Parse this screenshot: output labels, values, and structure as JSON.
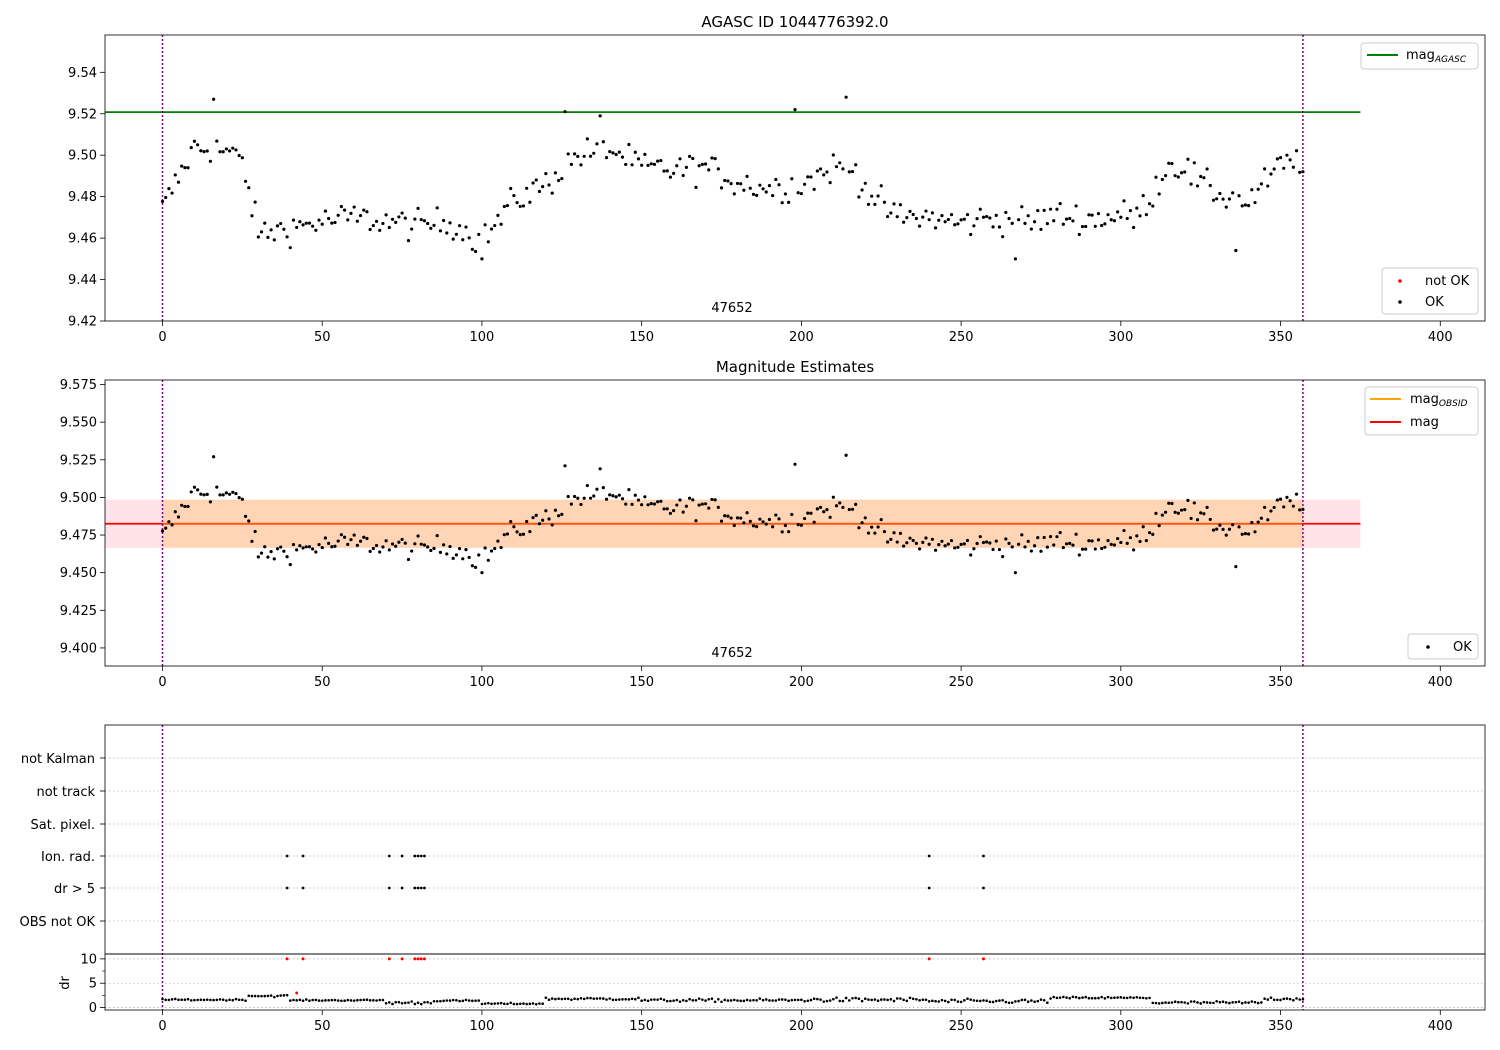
{
  "chart_data": [
    {
      "type": "scatter",
      "title": "AGASC ID 1044776392.0",
      "xlim": [
        -18,
        414
      ],
      "ylim": [
        9.42,
        9.558
      ],
      "xticks": [
        "0",
        "50",
        "100",
        "150",
        "200",
        "250",
        "300",
        "350",
        "400"
      ],
      "yticks": [
        "9.42",
        "9.44",
        "9.46",
        "9.48",
        "9.50",
        "9.52",
        "9.54"
      ],
      "annotation": "47652",
      "reference_line": {
        "name": "mag",
        "subscript": "AGASC",
        "value": 9.5208,
        "x_range": [
          -18,
          375
        ],
        "color": "#008000"
      },
      "vlines": [
        0,
        357
      ],
      "legend_top": [
        {
          "name": "mag",
          "subscript": "AGASC",
          "color": "#008000"
        }
      ],
      "legend_bottom": [
        {
          "name": "not OK",
          "color": "#ff0000"
        },
        {
          "name": "OK",
          "color": "#000000"
        }
      ]
    },
    {
      "type": "scatter",
      "title": "Magnitude Estimates",
      "xlim": [
        -18,
        414
      ],
      "ylim": [
        9.388,
        9.578
      ],
      "xticks": [
        "0",
        "50",
        "100",
        "150",
        "200",
        "250",
        "300",
        "350",
        "400"
      ],
      "yticks": [
        "9.400",
        "9.425",
        "9.450",
        "9.475",
        "9.500",
        "9.525",
        "9.550",
        "9.575"
      ],
      "annotation": "47652",
      "mean_mag": 9.4825,
      "band": [
        9.4665,
        9.4985
      ],
      "legend_top": [
        {
          "name": "mag",
          "subscript": "OBSID",
          "color": "#ffa500"
        },
        {
          "name": "mag",
          "subscript": "",
          "color": "#ff0000"
        }
      ],
      "legend_bottom": [
        {
          "name": "OK",
          "color": "#000000"
        }
      ]
    },
    {
      "type": "scatter",
      "xlim": [
        -18,
        414
      ],
      "categories": [
        "not Kalman",
        "not track",
        "Sat. pixel.",
        "Ion. rad.",
        "dr > 5",
        "OBS not OK"
      ],
      "flag_times": [
        39,
        44,
        71,
        75,
        79,
        80,
        81,
        82,
        240,
        257
      ],
      "flagged_categories": [
        "Ion. rad.",
        "dr > 5"
      ],
      "dr_ylim": [
        -0.5,
        11
      ],
      "dr_yticks": [
        "0",
        "5",
        "10"
      ],
      "dr_ylabel": "dr",
      "dr_clip": 10,
      "xticks": [
        "0",
        "50",
        "100",
        "150",
        "200",
        "250",
        "300",
        "350",
        "400"
      ]
    }
  ]
}
